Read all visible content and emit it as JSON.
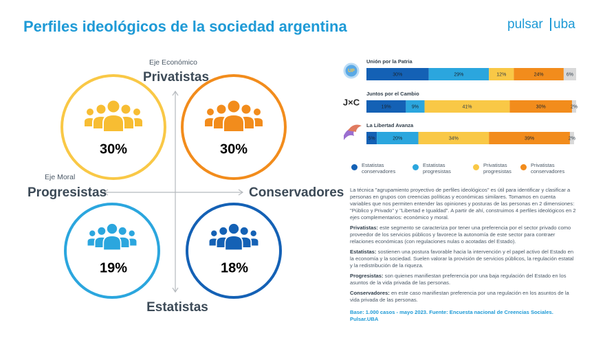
{
  "header": {
    "title": "Perfiles ideológicos de la sociedad argentina",
    "logo": {
      "left": "pulsar",
      "right": "uba"
    }
  },
  "quadrant": {
    "vertical_axis": {
      "caption": "Eje Económico",
      "top": "Privatistas",
      "bottom": "Estatistas"
    },
    "horizontal_axis": {
      "caption": "Eje Moral",
      "left": "Progresistas",
      "right": "Conservadores"
    },
    "cells": {
      "top_left": "30%",
      "top_right": "30%",
      "bottom_left": "19%",
      "bottom_right": "18%"
    }
  },
  "party_logos": [
    "UP",
    "J×C"
  ],
  "chart_data": {
    "type": "bar",
    "orientation": "horizontal",
    "stacked": true,
    "categories": [
      "Unión por la Patria",
      "Juntos por el Cambio",
      "La Libertad Avanza"
    ],
    "xlim": [
      0,
      100
    ],
    "series": [
      {
        "name": "Estatistas conservadores",
        "color": "#1461b5",
        "values": [
          30,
          19,
          5
        ],
        "value_labels": [
          "30%",
          "19%",
          "5%"
        ]
      },
      {
        "name": "Estatistas progresistas",
        "color": "#2ba6de",
        "values": [
          29,
          9,
          20
        ],
        "value_labels": [
          "29%",
          "9%",
          "20%"
        ]
      },
      {
        "name": "Privatistas progresistas",
        "color": "#f9c846",
        "values": [
          12,
          41,
          34
        ],
        "value_labels": [
          "12%",
          "41%",
          "34%"
        ]
      },
      {
        "name": "Privatistas conservadores",
        "color": "#f28c1c",
        "values": [
          24,
          30,
          39
        ],
        "value_labels": [
          "24%",
          "30%",
          "39%"
        ]
      },
      {
        "color": "#d9d9d9",
        "values": [
          6,
          2,
          2
        ],
        "value_labels": [
          "6%",
          "2%",
          "2%"
        ]
      }
    ]
  },
  "text": {
    "intro": "La técnica \"agrupamiento proyectivo de perfiles ideológicos\" es útil para identificar y clasificar a personas en grupos con creencias políticas y económicas similares. Tomamos en cuenta variables que nos permiten entender las opiniones y posturas de las personas en 2 dimensiones: \"Público y Privado\" y \"Libertad e Igualdad\". A partir de ahí, construimos 4 perfiles ideológicos en 2 ejes complementarios: económico y  moral.",
    "definitions": [
      {
        "term": "Privatistas:",
        "text": "este segmento se caracteriza por tener una preferencia por el sector privado como proveedor de los servicios públicos y favorece la autonomía de este sector para contraer relaciones económicas (con regulaciones nulas o acotadas del Estado)."
      },
      {
        "term": "Estatistas:",
        "text": "sostienen una postura favorable hacia la intervención y el papel activo del Estado en la economía y la sociedad. Suelen valorar la provisión de servicios públicos, la regulación estatal y la redistribución de la riqueza."
      },
      {
        "term": "Progresistas:",
        "text": "son quienes manifiestan preferencia por una baja regulación del Estado en los asuntos de la vida privada de las personas."
      },
      {
        "term": "Conservadores:",
        "text": "en este caso manifiestan preferencia por una regulación en los asuntos de la vida privada de las personas."
      }
    ],
    "source": "Base: 1.000 casos - mayo 2023. Fuente: Encuesta nacional de Creencias Sociales. Pulsar.UBA"
  }
}
